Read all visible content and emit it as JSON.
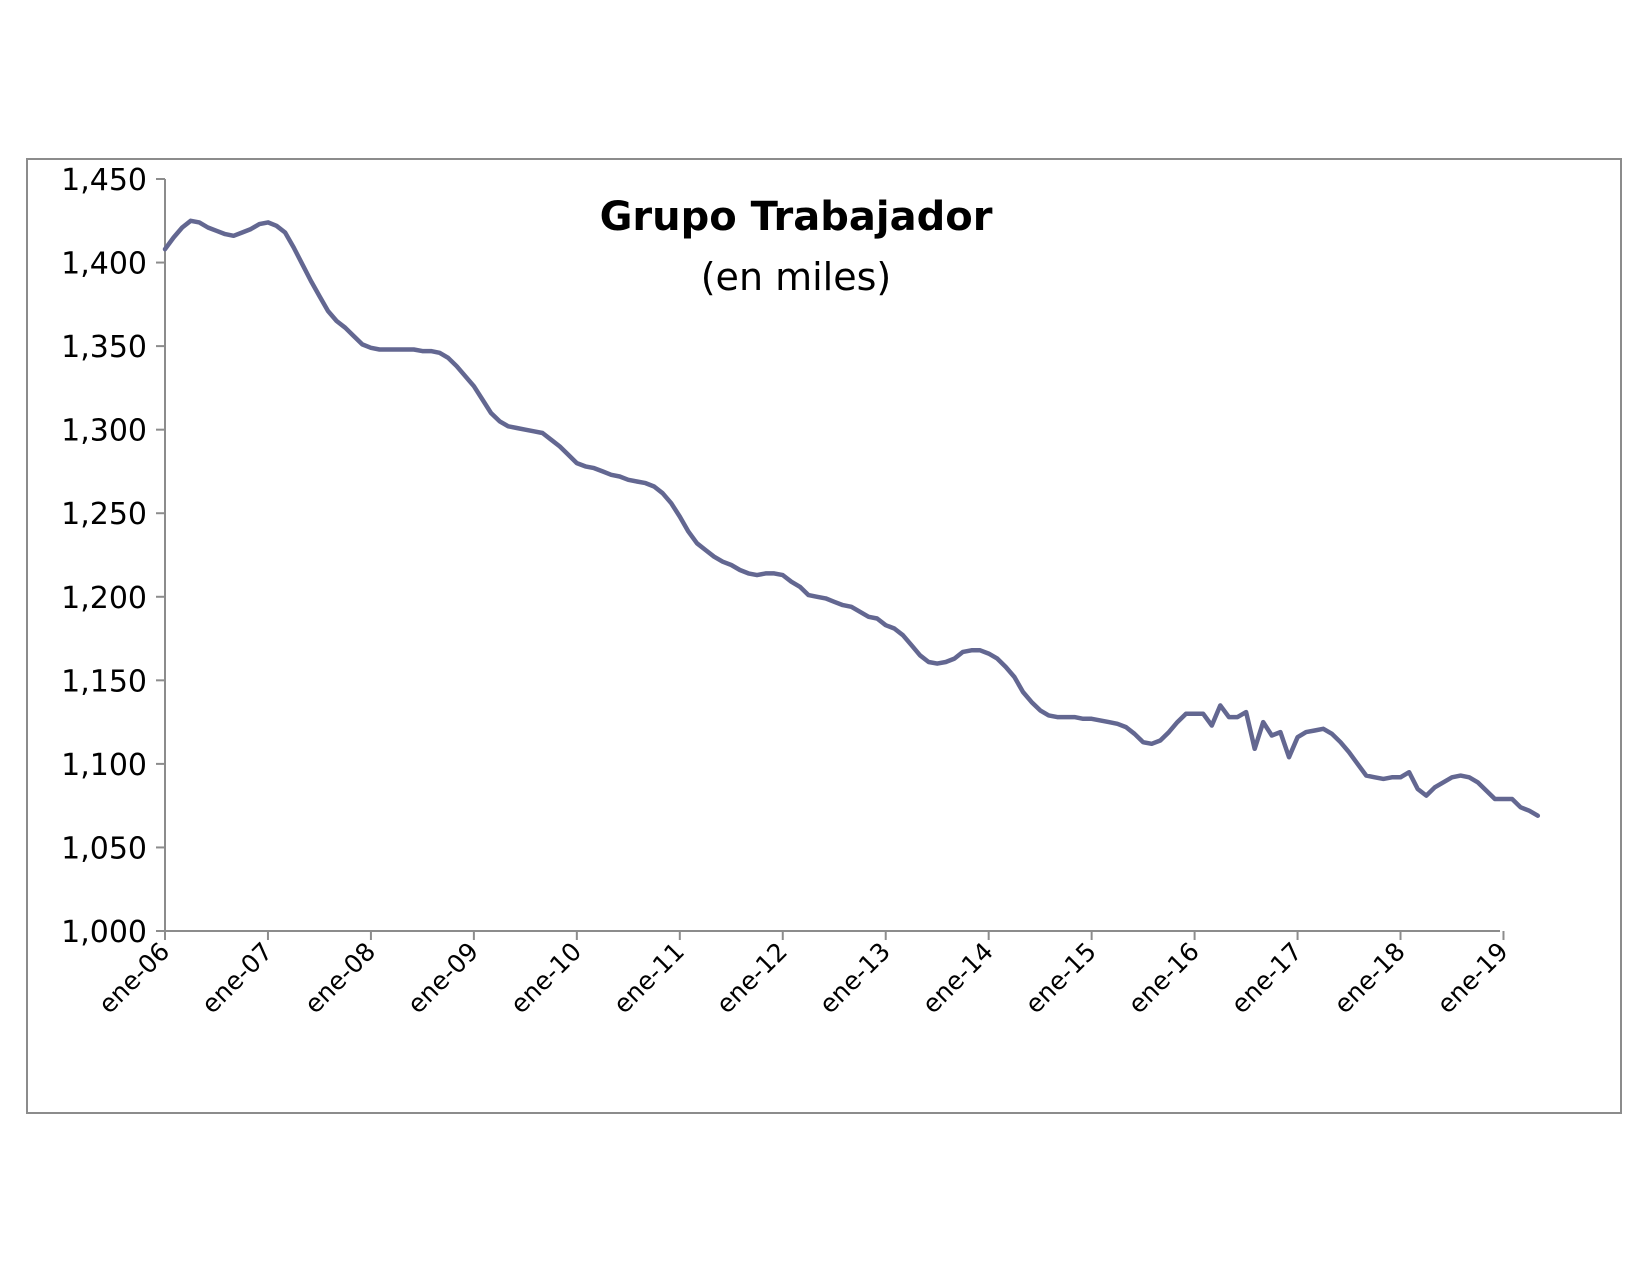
{
  "chart_data": {
    "type": "line",
    "title": "Grupo Trabajador",
    "subtitle": "(en miles)",
    "xlabel": "",
    "ylabel": "",
    "ylim": [
      1000,
      1450
    ],
    "yticks": [
      "1,000",
      "1,050",
      "1,100",
      "1,150",
      "1,200",
      "1,250",
      "1,300",
      "1,350",
      "1,400",
      "1,450"
    ],
    "xticks": [
      "ene-06",
      "ene-07",
      "ene-08",
      "ene-09",
      "ene-10",
      "ene-11",
      "ene-12",
      "ene-13",
      "ene-14",
      "ene-15",
      "ene-16",
      "ene-17",
      "ene-18",
      "ene-19"
    ],
    "grid": false,
    "legend": "none",
    "colors": {
      "line": "#636791",
      "axis": "#8c8c8c"
    },
    "series": [
      {
        "start": "2006-01",
        "frequency": "monthly",
        "values": [
          1408,
          1415,
          1421,
          1425,
          1424,
          1421,
          1419,
          1417,
          1416,
          1418,
          1420,
          1423,
          1424,
          1422,
          1418,
          1409,
          1399,
          1389,
          1380,
          1371,
          1365,
          1361,
          1356,
          1351,
          1349,
          1348,
          1348,
          1348,
          1348,
          1348,
          1347,
          1347,
          1346,
          1343,
          1338,
          1332,
          1326,
          1318,
          1310,
          1305,
          1302,
          1301,
          1300,
          1299,
          1298,
          1294,
          1290,
          1285,
          1280,
          1278,
          1277,
          1275,
          1273,
          1272,
          1270,
          1269,
          1268,
          1266,
          1262,
          1256,
          1248,
          1239,
          1232,
          1228,
          1224,
          1221,
          1219,
          1216,
          1214,
          1213,
          1214,
          1214,
          1213,
          1209,
          1206,
          1201,
          1200,
          1199,
          1197,
          1195,
          1194,
          1191,
          1188,
          1187,
          1183,
          1181,
          1177,
          1171,
          1165,
          1161,
          1160,
          1161,
          1163,
          1167,
          1168,
          1168,
          1166,
          1163,
          1158,
          1152,
          1143,
          1137,
          1132,
          1129,
          1128,
          1128,
          1128,
          1127,
          1127,
          1126,
          1125,
          1124,
          1122,
          1118,
          1113,
          1112,
          1114,
          1119,
          1125,
          1130,
          1130,
          1130,
          1123,
          1135,
          1128,
          1128,
          1131,
          1109,
          1125,
          1117,
          1119,
          1104,
          1116,
          1119,
          1120,
          1121,
          1118,
          1113,
          1107,
          1100,
          1093,
          1092,
          1091,
          1092,
          1092,
          1095,
          1085,
          1081,
          1086,
          1089,
          1092,
          1093,
          1092,
          1089,
          1084,
          1079,
          1079,
          1079,
          1074,
          1072,
          1069
        ]
      }
    ]
  }
}
